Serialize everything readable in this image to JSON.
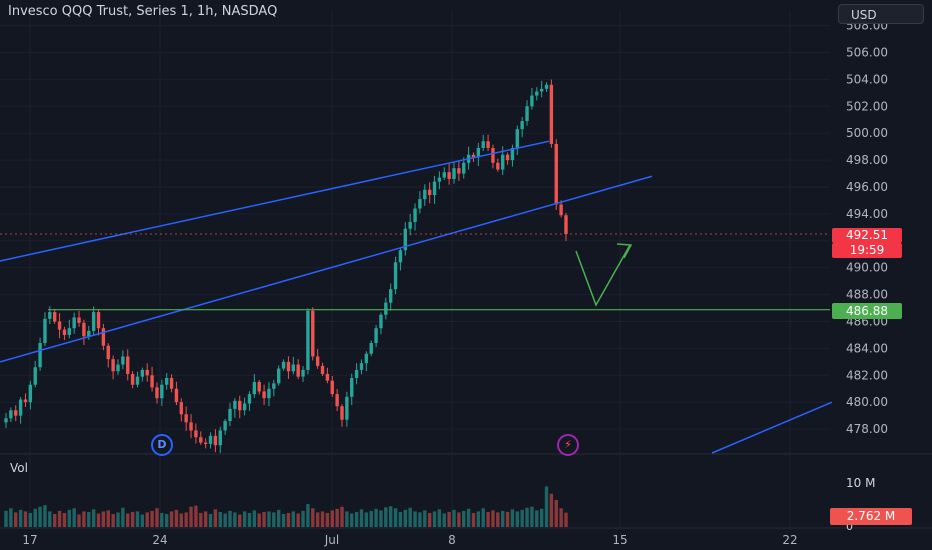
{
  "header": {
    "title": "Invesco QQQ Trust, Series 1, 1h, NASDAQ",
    "currency": "USD"
  },
  "volume_pane": {
    "label": "Vol",
    "axis_label": "10 M",
    "zero_label": "0",
    "current_volume": "2.762 M"
  },
  "badges": {
    "dividend": "D",
    "earnings": "⚡"
  },
  "price_tags": {
    "current_price": "492.51",
    "countdown": "19:59",
    "level": "486.88"
  },
  "colors": {
    "background": "#131722",
    "up": "#26a69a",
    "down": "#ef5350",
    "trendline": "#2962ff",
    "level_line": "#4caf50",
    "arrow": "#4caf50"
  },
  "chart_data": {
    "type": "candlestick",
    "title": "Invesco QQQ Trust, Series 1, 1h, NASDAQ",
    "ylim": [
      476.5,
      509
    ],
    "y_ticks": [
      "478.00",
      "480.00",
      "482.00",
      "484.00",
      "486.00",
      "488.00",
      "490.00",
      "492.00",
      "494.00",
      "496.00",
      "498.00",
      "500.00",
      "502.00",
      "504.00",
      "506.00",
      "508.00"
    ],
    "x_ticks": [
      "17",
      "24",
      "Jul",
      "8",
      "15",
      "22"
    ],
    "current_price": 492.51,
    "horizontal_level": 486.88,
    "approx_closes": [
      478.8,
      479.4,
      479.0,
      480.2,
      480.0,
      481.3,
      482.6,
      484.4,
      486.2,
      486.7,
      486.0,
      485.4,
      485.0,
      485.5,
      486.3,
      485.9,
      484.9,
      485.3,
      486.7,
      485.5,
      484.2,
      483.2,
      482.3,
      482.8,
      483.4,
      482.1,
      481.3,
      481.9,
      482.4,
      482.0,
      481.1,
      480.3,
      481.3,
      481.8,
      481.0,
      480.0,
      479.1,
      478.5,
      477.9,
      477.4,
      477.0,
      476.9,
      477.5,
      476.8,
      477.9,
      478.6,
      479.5,
      480.1,
      479.4,
      479.9,
      480.6,
      481.5,
      480.8,
      480.3,
      481.0,
      481.4,
      482.5,
      483.0,
      482.3,
      482.8,
      481.9,
      482.4,
      486.8,
      483.4,
      482.7,
      482.1,
      481.6,
      480.6,
      479.7,
      478.7,
      480.4,
      481.8,
      482.4,
      482.9,
      483.6,
      484.4,
      485.5,
      486.5,
      487.4,
      488.4,
      490.4,
      491.3,
      492.9,
      493.4,
      494.4,
      495.1,
      495.8,
      495.4,
      496.4,
      496.7,
      497.1,
      496.6,
      497.4,
      497.0,
      497.8,
      498.4,
      498.2,
      498.9,
      499.4,
      498.9,
      497.8,
      497.3,
      498.4,
      498.0,
      498.9,
      500.3,
      500.9,
      502.0,
      502.8,
      503.1,
      503.3,
      503.6,
      499.2,
      494.7,
      493.9,
      492.51
    ],
    "approx_volumes": [
      3.1,
      3.6,
      2.8,
      3.3,
      3.0,
      2.7,
      3.5,
      3.9,
      4.2,
      3.0,
      2.5,
      3.1,
      2.7,
      3.3,
      3.6,
      2.4,
      3.0,
      2.9,
      3.4,
      2.6,
      3.0,
      3.2,
      2.5,
      2.8,
      3.7,
      2.6,
      2.9,
      3.0,
      2.4,
      2.8,
      3.1,
      3.6,
      2.7,
      2.5,
      3.0,
      3.3,
      2.6,
      2.8,
      3.9,
      4.1,
      2.7,
      3.0,
      2.5,
      3.4,
      2.9,
      2.6,
      3.1,
      2.8,
      2.4,
      3.0,
      2.7,
      3.2,
      2.6,
      2.9,
      3.0,
      2.8,
      3.3,
      2.5,
      2.7,
      3.0,
      2.6,
      3.1,
      4.4,
      3.6,
      2.8,
      3.0,
      2.7,
      3.2,
      3.5,
      3.9,
      3.0,
      2.6,
      2.9,
      3.4,
      2.8,
      3.1,
      3.5,
      3.2,
      3.8,
      4.0,
      3.6,
      2.9,
      3.3,
      3.7,
      3.0,
      2.8,
      3.2,
      2.7,
      3.0,
      3.4,
      2.6,
      2.9,
      3.3,
      2.8,
      3.1,
      3.5,
      2.7,
      3.0,
      3.6,
      2.9,
      3.2,
      2.8,
      3.1,
      2.9,
      3.4,
      3.0,
      3.3,
      3.7,
      3.9,
      3.2,
      3.5,
      7.8,
      6.4,
      5.2,
      3.6,
      2.762
    ]
  }
}
